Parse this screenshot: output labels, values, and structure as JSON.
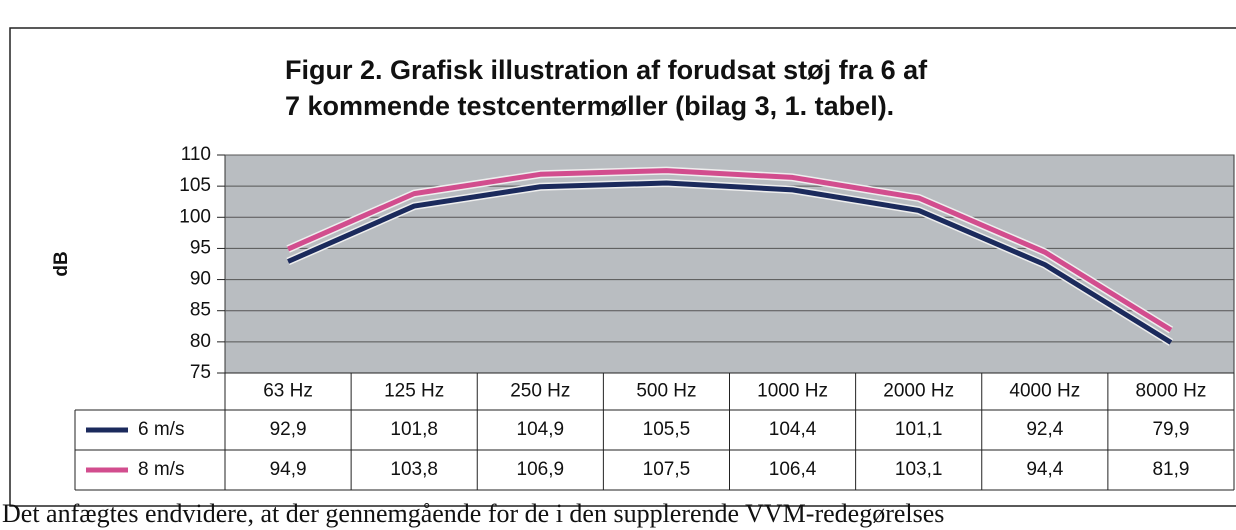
{
  "chart_data": {
    "type": "line",
    "title_lines": [
      "Figur 2. Grafisk illustration af forudsat støj fra 6 af",
      "7 kommende testcentermøller (bilag 3, 1. tabel)."
    ],
    "y_label": "dB",
    "categories": [
      "63 Hz",
      "125 Hz",
      "250 Hz",
      "500 Hz",
      "1000 Hz",
      "2000 Hz",
      "4000  Hz",
      "8000  Hz"
    ],
    "series": [
      {
        "name": "6 m/s",
        "color": "#1b2a5c",
        "values": [
          92.9,
          101.8,
          104.9,
          105.5,
          104.4,
          101.1,
          92.4,
          79.9
        ],
        "value_labels": [
          "92,9",
          "101,8",
          "104,9",
          "105,5",
          "104,4",
          "101,1",
          "92,4",
          "79,9"
        ]
      },
      {
        "name": "8 m/s",
        "color": "#d24d8e",
        "values": [
          94.9,
          103.8,
          106.9,
          107.5,
          106.4,
          103.1,
          94.4,
          81.9
        ],
        "value_labels": [
          "94,9",
          "103,8",
          "106,9",
          "107,5",
          "106,4",
          "103,1",
          "94,4",
          "81,9"
        ]
      }
    ],
    "ylim": [
      75,
      110
    ],
    "yticks": [
      75,
      80,
      85,
      90,
      95,
      100,
      105,
      110
    ],
    "grid": true
  },
  "body_text": "Det anfægtes endvidere, at der gennemgående for de i den supplerende VVM-redegørelses"
}
